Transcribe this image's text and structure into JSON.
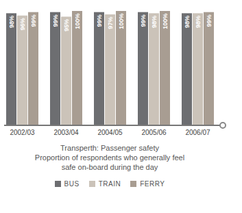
{
  "chart_data": {
    "type": "bar",
    "title": "Transperth: Passenger safety",
    "subtitle": "Proportion of respondents who generally feel safe on-board during the day",
    "categories": [
      "2002/03",
      "2003/04",
      "2004/05",
      "2005/06",
      "2006/07"
    ],
    "series": [
      {
        "name": "BUS",
        "color": "#6d6e71",
        "values": [
          98,
          99,
          99,
          99,
          98
        ],
        "value_labels": [
          "98%",
          "99%",
          "99%",
          "99%",
          "98%"
        ]
      },
      {
        "name": "TRAIN",
        "color": "#cbc3b9",
        "values": [
          96,
          95,
          97,
          98,
          98
        ],
        "value_labels": [
          "96%",
          "95%",
          "97%",
          "98%",
          "98%"
        ]
      },
      {
        "name": "FERRY",
        "color": "#a89d92",
        "values": [
          99,
          100,
          100,
          100,
          99
        ],
        "value_labels": [
          "99%",
          "100%",
          "100%",
          "100%",
          "99%"
        ]
      }
    ],
    "ylim": [
      0,
      100
    ],
    "tick_labels": "x",
    "data_labels": true,
    "legend": "bottom"
  }
}
